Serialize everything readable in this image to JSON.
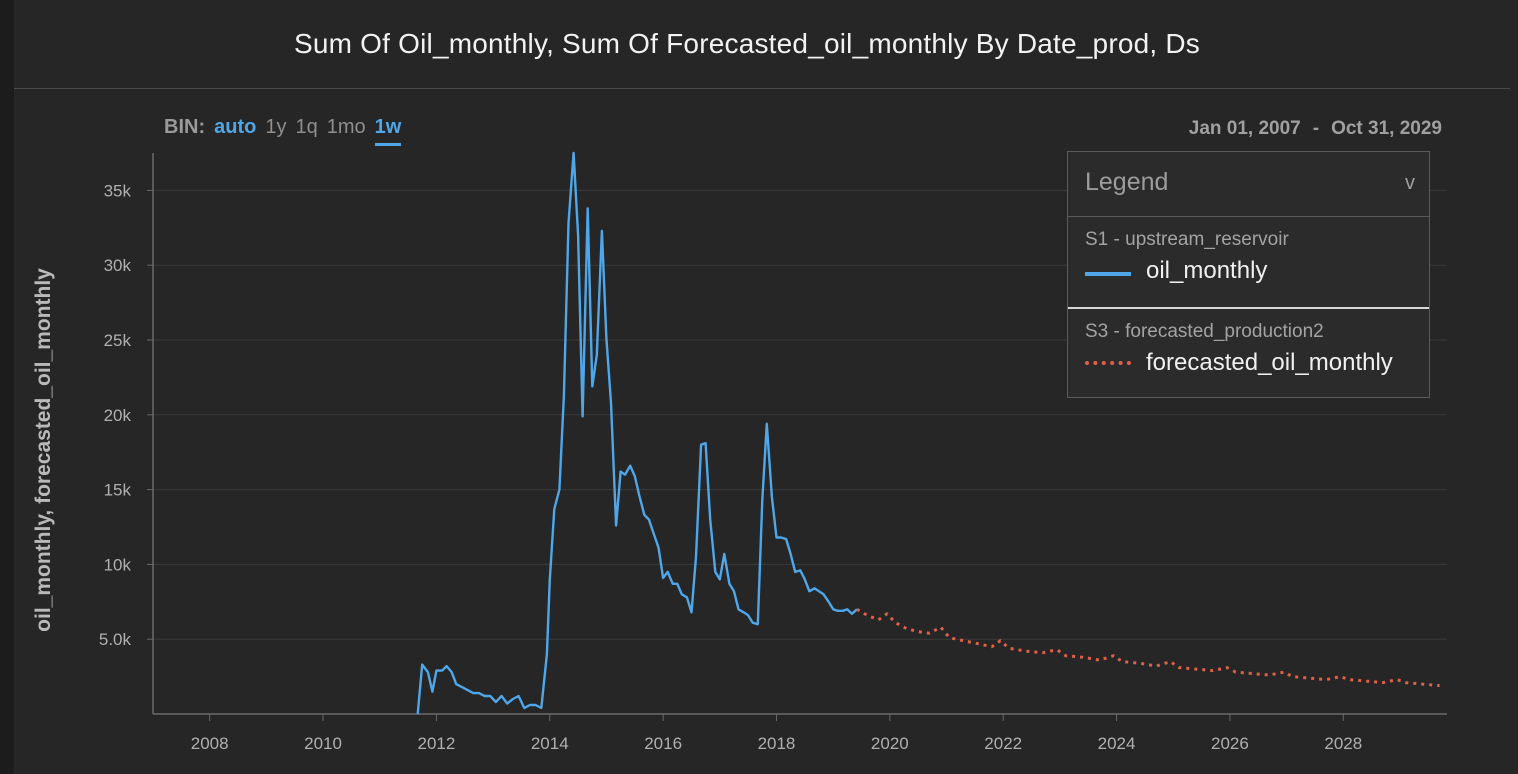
{
  "header": {
    "title": "Sum Of Oil_monthly, Sum Of Forecasted_oil_monthly By Date_prod, Ds"
  },
  "bin": {
    "label": "BIN:",
    "options": [
      "auto",
      "1y",
      "1q",
      "1mo",
      "1w"
    ],
    "active": "auto",
    "underlined": "1w"
  },
  "date_range": {
    "start": "Jan 01, 2007",
    "separator": "-",
    "end": "Oct 31, 2029"
  },
  "legend": {
    "title": "Legend",
    "chevron": "v",
    "groups": [
      {
        "source": "S1 - upstream_reservoir",
        "series": "oil_monthly",
        "style": "solid",
        "color": "#4fa6e8"
      },
      {
        "source": "S3 - forecasted_production2",
        "series": "forecasted_oil_monthly",
        "style": "dotted",
        "color": "#e0604a"
      }
    ]
  },
  "colors": {
    "background": "#262626",
    "oil": "#4fa6e8",
    "forecast": "#e0604a",
    "grid": "#3a3a3a"
  },
  "chart_data": {
    "type": "line",
    "title": "Sum Of Oil_monthly, Sum Of Forecasted_oil_monthly By Date_prod, Ds",
    "xlabel": "",
    "ylabel": "oil_monthly, forecasted_oil_monthly",
    "xlim": [
      2007.0,
      2029.83
    ],
    "ylim": [
      0,
      37500
    ],
    "x_ticks": [
      2008,
      2010,
      2012,
      2014,
      2016,
      2018,
      2020,
      2022,
      2024,
      2026,
      2028
    ],
    "y_ticks": [
      {
        "value": 5000,
        "label": "5.0k"
      },
      {
        "value": 10000,
        "label": "10k"
      },
      {
        "value": 15000,
        "label": "15k"
      },
      {
        "value": 20000,
        "label": "20k"
      },
      {
        "value": 25000,
        "label": "25k"
      },
      {
        "value": 30000,
        "label": "30k"
      },
      {
        "value": 35000,
        "label": "35k"
      }
    ],
    "grid": true,
    "legend_position": "top-right",
    "series": [
      {
        "name": "oil_monthly",
        "style": "solid",
        "x": [
          2011.67,
          2011.75,
          2011.85,
          2011.93,
          2012.0,
          2012.1,
          2012.18,
          2012.27,
          2012.35,
          2012.45,
          2012.55,
          2012.65,
          2012.75,
          2012.85,
          2012.95,
          2013.05,
          2013.15,
          2013.25,
          2013.35,
          2013.45,
          2013.55,
          2013.65,
          2013.75,
          2013.85,
          2013.95,
          2014.0,
          2014.08,
          2014.17,
          2014.25,
          2014.33,
          2014.42,
          2014.5,
          2014.58,
          2014.67,
          2014.75,
          2014.83,
          2014.92,
          2015.0,
          2015.08,
          2015.17,
          2015.25,
          2015.33,
          2015.42,
          2015.5,
          2015.58,
          2015.67,
          2015.75,
          2015.83,
          2015.92,
          2016.0,
          2016.08,
          2016.17,
          2016.25,
          2016.33,
          2016.42,
          2016.5,
          2016.58,
          2016.67,
          2016.75,
          2016.83,
          2016.92,
          2017.0,
          2017.08,
          2017.17,
          2017.25,
          2017.33,
          2017.42,
          2017.5,
          2017.58,
          2017.67,
          2017.75,
          2017.83,
          2017.92,
          2018.0,
          2018.08,
          2018.17,
          2018.25,
          2018.33,
          2018.42,
          2018.5,
          2018.58,
          2018.67,
          2018.75,
          2018.83,
          2018.92,
          2019.0,
          2019.08,
          2019.17,
          2019.25,
          2019.33,
          2019.42
        ],
        "values": [
          0,
          3300,
          2800,
          1500,
          2900,
          2900,
          3200,
          2800,
          2000,
          1800,
          1600,
          1400,
          1400,
          1200,
          1200,
          800,
          1200,
          700,
          1000,
          1200,
          400,
          600,
          600,
          400,
          4000,
          9000,
          13700,
          15000,
          21300,
          32800,
          37500,
          32000,
          19900,
          33800,
          21900,
          24000,
          32300,
          25100,
          20800,
          12600,
          16200,
          16000,
          16600,
          15900,
          14600,
          13300,
          13000,
          12100,
          11100,
          9100,
          9500,
          8700,
          8700,
          8000,
          7800,
          6800,
          10500,
          18000,
          18100,
          13000,
          9500,
          9000,
          10700,
          8700,
          8200,
          7000,
          6800,
          6600,
          6100,
          6000,
          14300,
          19400,
          14500,
          11800,
          11800,
          11700,
          10700,
          9500,
          9600,
          9000,
          8200,
          8400,
          8200,
          8000,
          7500,
          7000,
          6900,
          6900,
          7000,
          6700,
          7000
        ]
      },
      {
        "name": "forecasted_oil_monthly",
        "style": "dotted",
        "x": [
          2019.42,
          2019.6,
          2019.8,
          2019.95,
          2020.1,
          2020.3,
          2020.5,
          2020.7,
          2020.9,
          2021.05,
          2021.3,
          2021.55,
          2021.8,
          2021.95,
          2022.1,
          2022.4,
          2022.7,
          2022.95,
          2023.1,
          2023.4,
          2023.7,
          2023.95,
          2024.1,
          2024.4,
          2024.7,
          2024.95,
          2025.1,
          2025.4,
          2025.7,
          2025.95,
          2026.1,
          2026.4,
          2026.7,
          2026.95,
          2027.1,
          2027.4,
          2027.7,
          2027.95,
          2028.1,
          2028.4,
          2028.7,
          2028.95,
          2029.1,
          2029.4,
          2029.7
        ],
        "values": [
          7000,
          6600,
          6300,
          6700,
          6100,
          5700,
          5500,
          5400,
          5800,
          5100,
          4900,
          4700,
          4500,
          4900,
          4400,
          4200,
          4100,
          4300,
          3900,
          3800,
          3600,
          3900,
          3500,
          3400,
          3200,
          3500,
          3100,
          3000,
          2900,
          3100,
          2800,
          2700,
          2600,
          2800,
          2500,
          2400,
          2300,
          2500,
          2300,
          2200,
          2100,
          2300,
          2100,
          2000,
          1900
        ]
      }
    ]
  }
}
